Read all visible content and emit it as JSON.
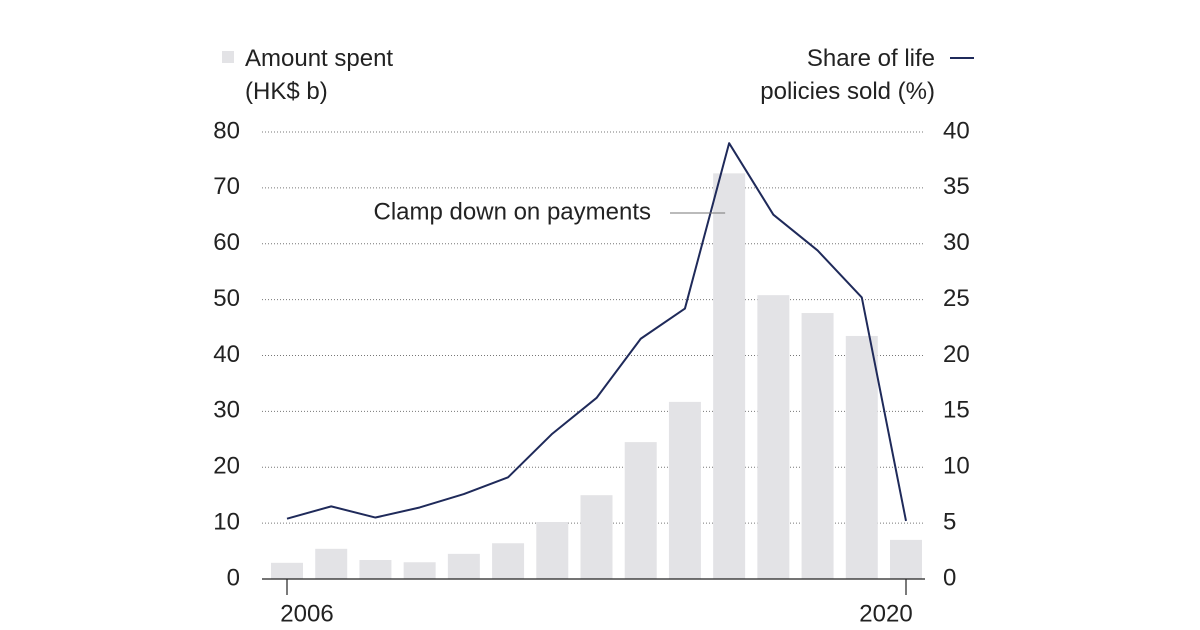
{
  "chart_data": {
    "type": "bar_line",
    "categories": [
      "2006",
      null,
      null,
      null,
      null,
      null,
      null,
      null,
      null,
      null,
      null,
      null,
      null,
      null,
      "2020"
    ],
    "series": [
      {
        "name": "Amount spent (HK$ b)",
        "color": "#e3e3e6",
        "type": "bar",
        "axis": "y",
        "values": [
          2.9,
          5.4,
          3.4,
          3.0,
          4.5,
          6.4,
          10.2,
          15.0,
          24.5,
          31.7,
          72.6,
          50.8,
          47.6,
          43.5,
          7.0
        ]
      },
      {
        "name": "Share of life policies sold (%)",
        "color": "#1f2a5a",
        "type": "line",
        "axis": "y2",
        "values": [
          5.4,
          6.5,
          5.5,
          6.4,
          7.6,
          9.1,
          13.0,
          16.2,
          21.5,
          24.2,
          39.0,
          32.6,
          29.4,
          25.2,
          5.2
        ]
      }
    ],
    "ylim": [
      0,
      80
    ],
    "yticks": [
      0,
      10,
      20,
      30,
      40,
      50,
      60,
      70,
      80
    ],
    "y2lim": [
      0,
      40
    ],
    "y2ticks": [
      0,
      5,
      10,
      15,
      20,
      25,
      30,
      35,
      40
    ],
    "grid": true,
    "annotations": [
      {
        "text": "Clamp down on payments",
        "index": 10
      }
    ]
  }
}
